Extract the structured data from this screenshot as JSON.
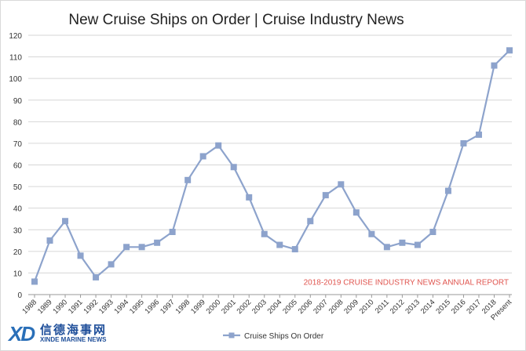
{
  "chart_data": {
    "type": "line",
    "title": "New Cruise Ships on Order | Cruise Industry News",
    "xlabel": "",
    "ylabel": "",
    "ylim": [
      0,
      120
    ],
    "yticks": [
      0,
      10,
      20,
      30,
      40,
      50,
      60,
      70,
      80,
      90,
      100,
      110,
      120
    ],
    "categories": [
      "1988",
      "1989",
      "1990",
      "1991",
      "1992",
      "1993",
      "1994",
      "1995",
      "1996",
      "1997",
      "1998",
      "1999",
      "2000",
      "2001",
      "2002",
      "2003",
      "2004",
      "2005",
      "2006",
      "2007",
      "2008",
      "2009",
      "2010",
      "2011",
      "2012",
      "2013",
      "2014",
      "2015",
      "2016",
      "2017",
      "2018",
      "Present"
    ],
    "series": [
      {
        "name": "Cruise Ships On Order",
        "color": "#8da3cc",
        "values": [
          6,
          25,
          34,
          18,
          8,
          14,
          22,
          22,
          24,
          29,
          53,
          64,
          69,
          59,
          45,
          28,
          23,
          21,
          34,
          46,
          51,
          38,
          28,
          22,
          24,
          23,
          29,
          48,
          70,
          74,
          106,
          113
        ]
      }
    ],
    "grid": "horizontal",
    "legend": "bottom",
    "annotation": "2018-2019 CRUISE INDUSTRY NEWS ANNUAL REPORT",
    "annotation_color": "#e0554f"
  },
  "logo": {
    "mark": "XD",
    "chinese": "信德海事网",
    "english": "XINDE MARINE NEWS"
  }
}
